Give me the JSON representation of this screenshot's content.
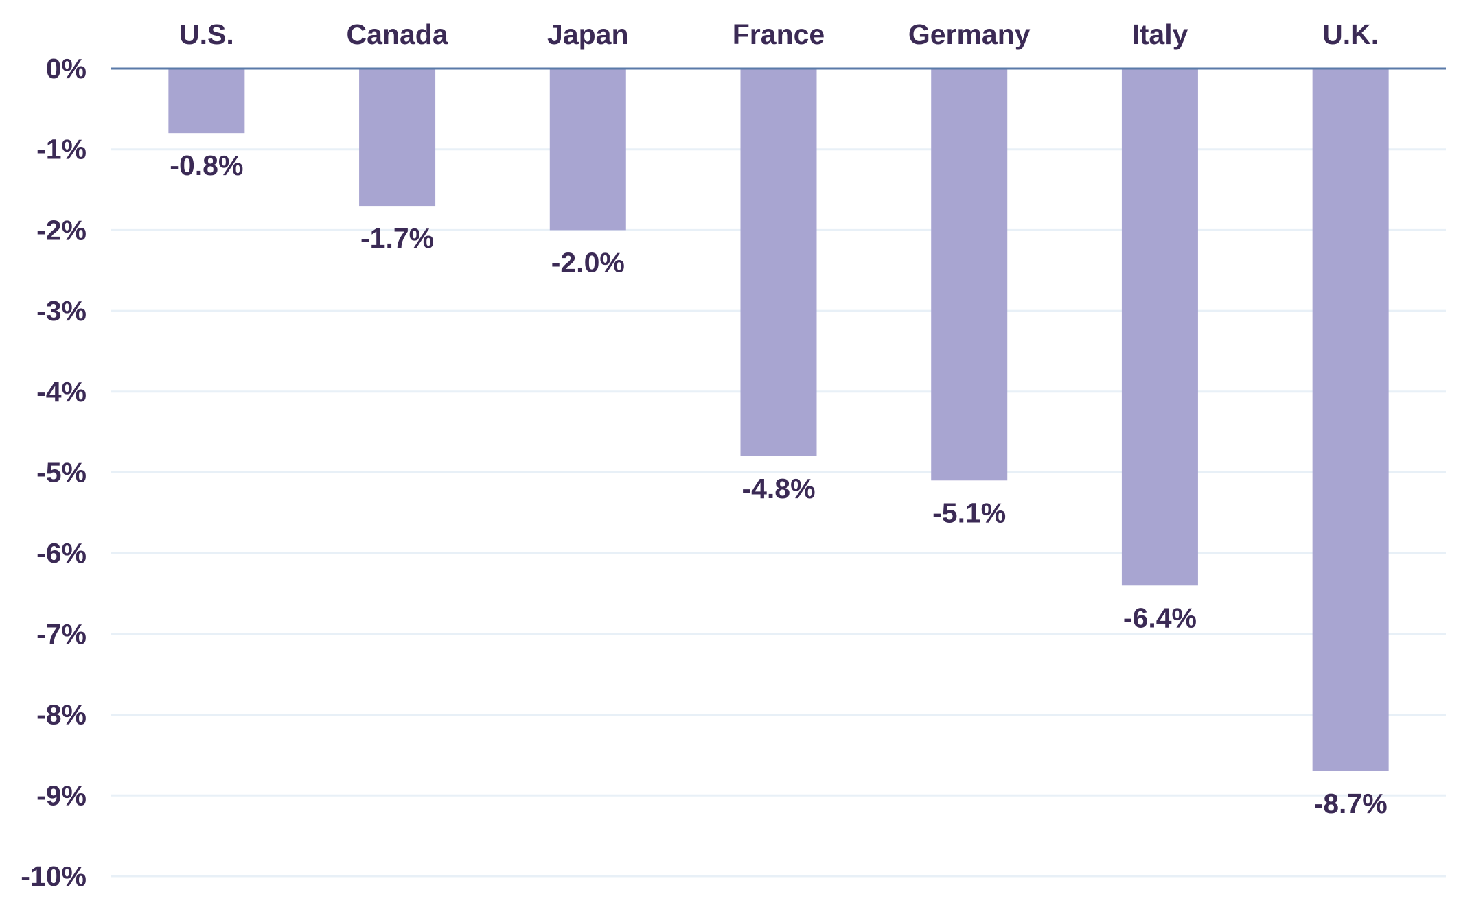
{
  "chart_data": {
    "type": "bar",
    "title": "",
    "xlabel": "",
    "ylabel": "",
    "categories": [
      "U.S.",
      "Canada",
      "Japan",
      "France",
      "Germany",
      "Italy",
      "U.K."
    ],
    "values": [
      -0.8,
      -1.7,
      -2.0,
      -4.8,
      -5.1,
      -6.4,
      -8.7
    ],
    "data_labels": [
      "-0.8%",
      "-1.7%",
      "-2.0%",
      "-4.8%",
      "-5.1%",
      "-6.4%",
      "-8.7%"
    ],
    "ylim": [
      -10,
      0
    ],
    "yticks": [
      0,
      -1,
      -2,
      -3,
      -4,
      -5,
      -6,
      -7,
      -8,
      -9,
      -10
    ],
    "ytick_labels": [
      "0%",
      "-1%",
      "-2%",
      "-3%",
      "-4%",
      "-5%",
      "-6%",
      "-7%",
      "-8%",
      "-9%",
      "-10%"
    ],
    "category_axis_position": "top",
    "grid": true,
    "legend": "none",
    "colors": {
      "bar": "#a8a5d1",
      "text": "#3b2a55",
      "gridline": "#e8f0f7",
      "zero_line": "#5a7aa8"
    }
  }
}
